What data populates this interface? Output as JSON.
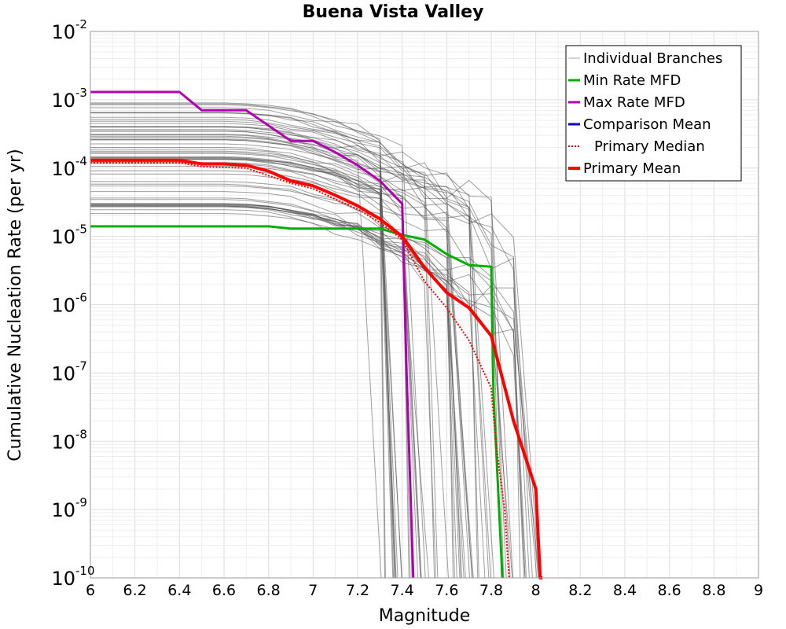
{
  "chart_data": {
    "type": "line",
    "title": "Buena Vista Valley",
    "xlabel": "Magnitude",
    "ylabel": "Cumulative Nucleation Rate (per yr)",
    "x_scale": "linear",
    "y_scale": "log",
    "xlim": [
      6,
      9
    ],
    "ylim": [
      1e-10,
      0.01
    ],
    "x_ticks": [
      "6",
      "6.2",
      "6.4",
      "6.6",
      "6.8",
      "7",
      "7.2",
      "7.4",
      "7.6",
      "7.8",
      "8",
      "8.2",
      "8.4",
      "8.6",
      "8.8",
      "9"
    ],
    "y_ticks": [
      {
        "base": "10",
        "exp": "-10"
      },
      {
        "base": "10",
        "exp": "-9"
      },
      {
        "base": "10",
        "exp": "-8"
      },
      {
        "base": "10",
        "exp": "-7"
      },
      {
        "base": "10",
        "exp": "-6"
      },
      {
        "base": "10",
        "exp": "-5"
      },
      {
        "base": "10",
        "exp": "-4"
      },
      {
        "base": "10",
        "exp": "-3"
      },
      {
        "base": "10",
        "exp": "-2"
      }
    ],
    "grid": true,
    "legend_position": "top-right",
    "series": [
      {
        "name": "Min Rate MFD",
        "color": "#00b000",
        "style": "solid",
        "x": [
          6.0,
          6.8,
          6.9,
          7.3,
          7.4,
          7.5,
          7.6,
          7.7,
          7.8,
          7.81,
          7.85
        ],
        "y": [
          1.4e-05,
          1.4e-05,
          1.3e-05,
          1.3e-05,
          1.05e-05,
          9e-06,
          5.5e-06,
          3.8e-06,
          3.6e-06,
          5e-08,
          1e-10
        ]
      },
      {
        "name": "Max Rate MFD",
        "color": "#b000b0",
        "style": "solid",
        "x": [
          6.0,
          6.4,
          6.5,
          6.7,
          6.9,
          7.0,
          7.1,
          7.2,
          7.3,
          7.4,
          7.42,
          7.45
        ],
        "y": [
          0.0013,
          0.0013,
          0.0007,
          0.0007,
          0.00025,
          0.00025,
          0.00017,
          0.00011,
          6.5e-05,
          3e-05,
          1e-07,
          1e-10
        ]
      },
      {
        "name": "Comparison Mean",
        "color": "#0000d0",
        "style": "solid",
        "x": [],
        "y": []
      },
      {
        "name": "Primary Median",
        "color": "#ff0000",
        "style": "dotted",
        "x": [
          6.0,
          6.4,
          6.5,
          6.7,
          6.9,
          7.0,
          7.1,
          7.2,
          7.3,
          7.4,
          7.5,
          7.6,
          7.7,
          7.8,
          7.82,
          7.86,
          7.88
        ],
        "y": [
          0.00012,
          0.00012,
          0.000105,
          0.0001,
          6e-05,
          5e-05,
          3.5e-05,
          2.5e-05,
          1.6e-05,
          9e-06,
          2.2e-06,
          9e-07,
          3e-07,
          6e-08,
          1e-08,
          1e-09,
          1e-10
        ]
      },
      {
        "name": "Primary Mean",
        "color": "#ff0000",
        "style": "solid-thick",
        "x": [
          6.0,
          6.4,
          6.5,
          6.6,
          6.7,
          6.8,
          6.9,
          7.0,
          7.1,
          7.2,
          7.3,
          7.4,
          7.5,
          7.6,
          7.7,
          7.8,
          7.9,
          8.0,
          8.02,
          8.03
        ],
        "y": [
          0.00013,
          0.00013,
          0.000115,
          0.000115,
          0.00011,
          9e-05,
          6.5e-05,
          5.5e-05,
          4e-05,
          2.8e-05,
          1.8e-05,
          1e-05,
          3.5e-06,
          1.5e-06,
          9e-07,
          3.5e-07,
          2e-08,
          2e-09,
          1e-10,
          1e-10
        ]
      }
    ],
    "individual_branches": {
      "name": "Individual Branches",
      "color": "#505050",
      "count": 60,
      "base_rate_range": [
        2e-05,
        0.001
      ],
      "drop_x_range": [
        7.28,
        8.02
      ]
    }
  }
}
